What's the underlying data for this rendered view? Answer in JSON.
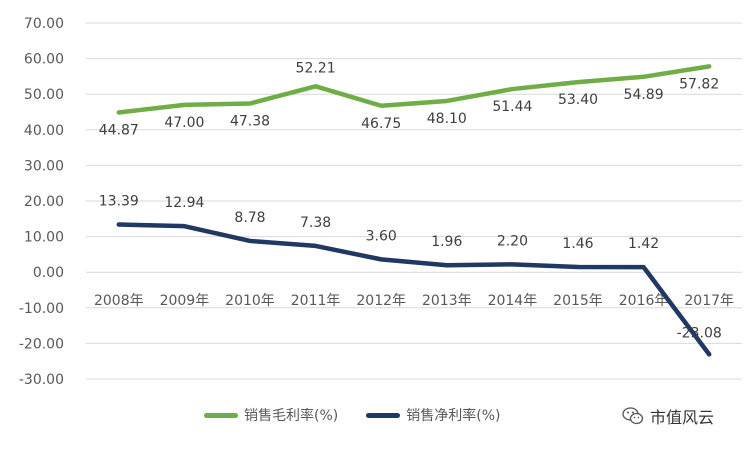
{
  "chart_data": {
    "type": "line",
    "categories": [
      "2008年",
      "2009年",
      "2010年",
      "2011年",
      "2012年",
      "2013年",
      "2014年",
      "2015年",
      "2016年",
      "2017年"
    ],
    "series": [
      {
        "name": "销售毛利率(%)",
        "color": "#70AD47",
        "values": [
          44.87,
          47.0,
          47.38,
          52.21,
          46.75,
          48.1,
          51.44,
          53.4,
          54.89,
          57.82
        ],
        "labels": [
          "44.87",
          "47.00",
          "47.38",
          "52.21",
          "46.75",
          "48.10",
          "51.44",
          "53.40",
          "54.89",
          "57.82"
        ]
      },
      {
        "name": "销售净利率(%)",
        "color": "#203864",
        "values": [
          13.39,
          12.94,
          8.78,
          7.38,
          3.6,
          1.96,
          2.2,
          1.46,
          1.42,
          -23.08
        ],
        "labels": [
          "13.39",
          "12.94",
          "8.78",
          "7.38",
          "3.60",
          "1.96",
          "2.20",
          "1.46",
          "1.42",
          "-23.08"
        ]
      }
    ],
    "yticks": [
      "70.00",
      "60.00",
      "50.00",
      "40.00",
      "30.00",
      "20.00",
      "10.00",
      "0.00",
      "-10.00",
      "-20.00",
      "-30.00"
    ],
    "ylim": [
      -30,
      70
    ],
    "grid": true,
    "legend": "bottom"
  },
  "legend": {
    "gross_label": "销售毛利率(%)",
    "net_label": "销售净利率(%)"
  },
  "watermark": {
    "text": "市值风云",
    "icon": "wechat-icon"
  }
}
